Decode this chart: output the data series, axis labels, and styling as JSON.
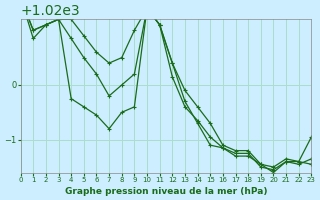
{
  "title": "Graphe pression niveau de la mer (hPa)",
  "background_color": "#cceeff",
  "grid_color": "#aaddcc",
  "line_color": "#1a6b1a",
  "xlim": [
    0,
    23
  ],
  "ylim": [
    1018.4,
    1021.2
  ],
  "yticks": [
    1019,
    1020
  ],
  "xticks": [
    0,
    1,
    2,
    3,
    4,
    5,
    6,
    7,
    8,
    9,
    10,
    11,
    12,
    13,
    14,
    15,
    16,
    17,
    18,
    19,
    20,
    21,
    22,
    23
  ],
  "series": [
    [
      1021.6,
      1021.0,
      1021.1,
      1021.2,
      1021.2,
      1020.9,
      1020.6,
      1020.4,
      1020.5,
      1021.0,
      1021.4,
      1021.1,
      1020.4,
      1019.9,
      1019.6,
      1019.3,
      1018.9,
      1018.8,
      1018.8,
      1018.55,
      1018.5,
      1018.65,
      1018.6,
      1018.55
    ],
    [
      1021.6,
      1020.85,
      1021.1,
      1021.2,
      1019.75,
      1019.6,
      1019.45,
      1019.2,
      1019.5,
      1019.6,
      1021.4,
      1021.1,
      1020.4,
      1019.7,
      1019.3,
      1018.9,
      1018.85,
      1018.7,
      1018.7,
      1018.55,
      1018.4,
      1018.6,
      1018.55,
      1018.65
    ],
    [
      1021.6,
      1021.0,
      1021.1,
      1021.2,
      1020.85,
      1020.5,
      1020.2,
      1019.8,
      1020.0,
      1020.2,
      1021.4,
      1021.1,
      1020.15,
      1019.6,
      1019.35,
      1019.05,
      1018.85,
      1018.75,
      1018.75,
      1018.5,
      1018.45,
      1018.6,
      1018.6,
      1019.05
    ]
  ]
}
